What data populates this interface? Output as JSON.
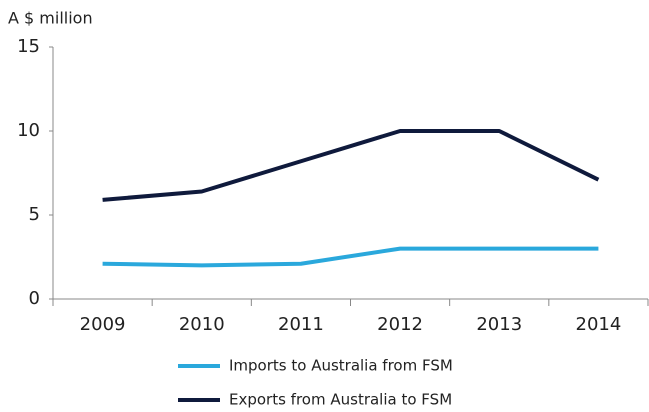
{
  "chart_data": {
    "type": "line",
    "y_axis_label": "A $ million",
    "categories": [
      "2009",
      "2010",
      "2011",
      "2012",
      "2013",
      "2014"
    ],
    "series": [
      {
        "name": "Imports to Australia from FSM",
        "color": "#2aa8dc",
        "values": [
          2.1,
          2.0,
          2.1,
          3.0,
          3.0,
          3.0
        ]
      },
      {
        "name": "Exports from Australia to FSM",
        "color": "#0f1a3c",
        "values": [
          5.9,
          6.4,
          8.2,
          10.0,
          10.0,
          7.1
        ]
      }
    ],
    "ylim": [
      0,
      15
    ],
    "yticks": [
      0,
      5,
      10,
      15
    ],
    "grid": false,
    "legend": "bottom"
  }
}
